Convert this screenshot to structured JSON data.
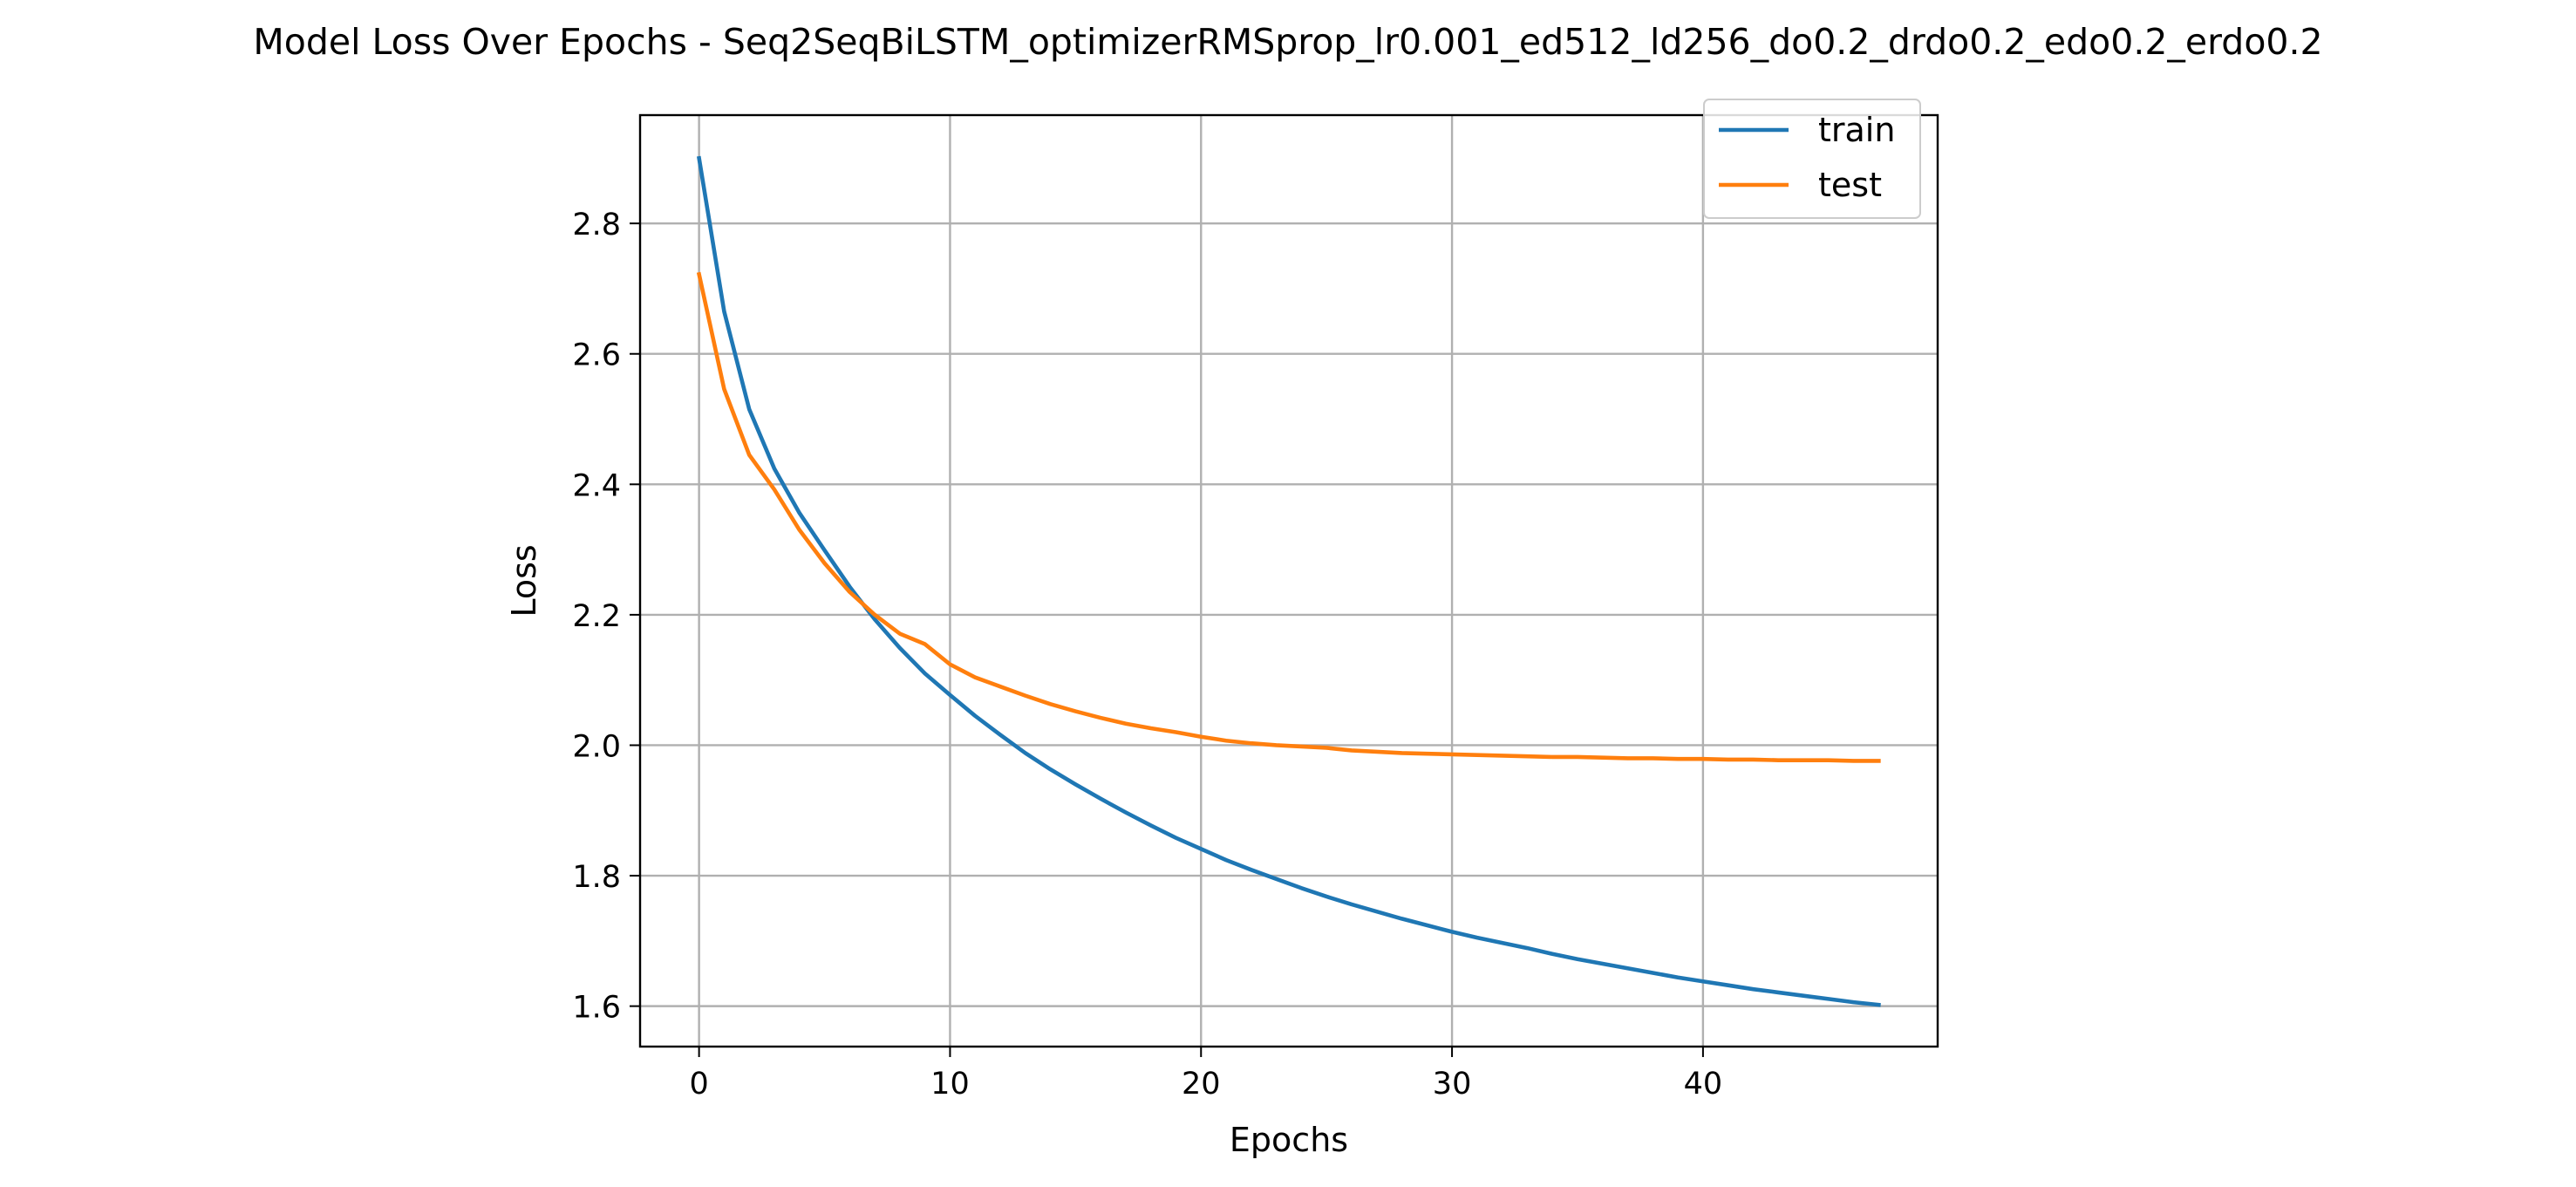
{
  "chart_data": {
    "type": "line",
    "title": "Model Loss Over Epochs - Seq2SeqBiLSTM_optimizerRMSprop_lr0.001_ed512_ld256_do0.2_drdo0.2_edo0.2_erdo0.2",
    "xlabel": "Epochs",
    "ylabel": "Loss",
    "xlim": [
      -2.35,
      49.35
    ],
    "ylim": [
      1.538,
      2.966
    ],
    "xticks": [
      0,
      10,
      20,
      30,
      40
    ],
    "xtick_labels": [
      "0",
      "10",
      "20",
      "30",
      "40"
    ],
    "yticks": [
      1.6,
      1.8,
      2.0,
      2.2,
      2.4,
      2.6,
      2.8
    ],
    "ytick_labels": [
      "1.6",
      "1.8",
      "2.0",
      "2.2",
      "2.4",
      "2.6",
      "2.8"
    ],
    "grid": true,
    "legend_position": "top-right",
    "x": [
      0,
      1,
      2,
      3,
      4,
      5,
      6,
      7,
      8,
      9,
      10,
      11,
      12,
      13,
      14,
      15,
      16,
      17,
      18,
      19,
      20,
      21,
      22,
      23,
      24,
      25,
      26,
      27,
      28,
      29,
      30,
      31,
      32,
      33,
      34,
      35,
      36,
      37,
      38,
      39,
      40,
      41,
      42,
      43,
      44,
      45,
      46,
      47
    ],
    "series": [
      {
        "name": "train",
        "color": "#1f77b4",
        "values": [
          2.9,
          2.665,
          2.515,
          2.424,
          2.356,
          2.299,
          2.243,
          2.193,
          2.149,
          2.11,
          2.077,
          2.045,
          2.016,
          1.988,
          1.963,
          1.94,
          1.918,
          1.897,
          1.877,
          1.858,
          1.841,
          1.824,
          1.809,
          1.795,
          1.781,
          1.768,
          1.756,
          1.745,
          1.734,
          1.724,
          1.714,
          1.705,
          1.697,
          1.689,
          1.68,
          1.672,
          1.665,
          1.658,
          1.651,
          1.644,
          1.638,
          1.632,
          1.626,
          1.621,
          1.616,
          1.611,
          1.606,
          1.602
        ]
      },
      {
        "name": "test",
        "color": "#ff7f0e",
        "values": [
          2.722,
          2.546,
          2.445,
          2.392,
          2.33,
          2.279,
          2.235,
          2.2,
          2.171,
          2.155,
          2.124,
          2.104,
          2.09,
          2.076,
          2.063,
          2.052,
          2.042,
          2.033,
          2.026,
          2.02,
          2.013,
          2.007,
          2.003,
          2.0,
          1.998,
          1.996,
          1.992,
          1.99,
          1.988,
          1.987,
          1.986,
          1.985,
          1.984,
          1.983,
          1.982,
          1.982,
          1.981,
          1.98,
          1.98,
          1.979,
          1.979,
          1.978,
          1.978,
          1.977,
          1.977,
          1.977,
          1.976,
          1.976
        ]
      }
    ]
  }
}
